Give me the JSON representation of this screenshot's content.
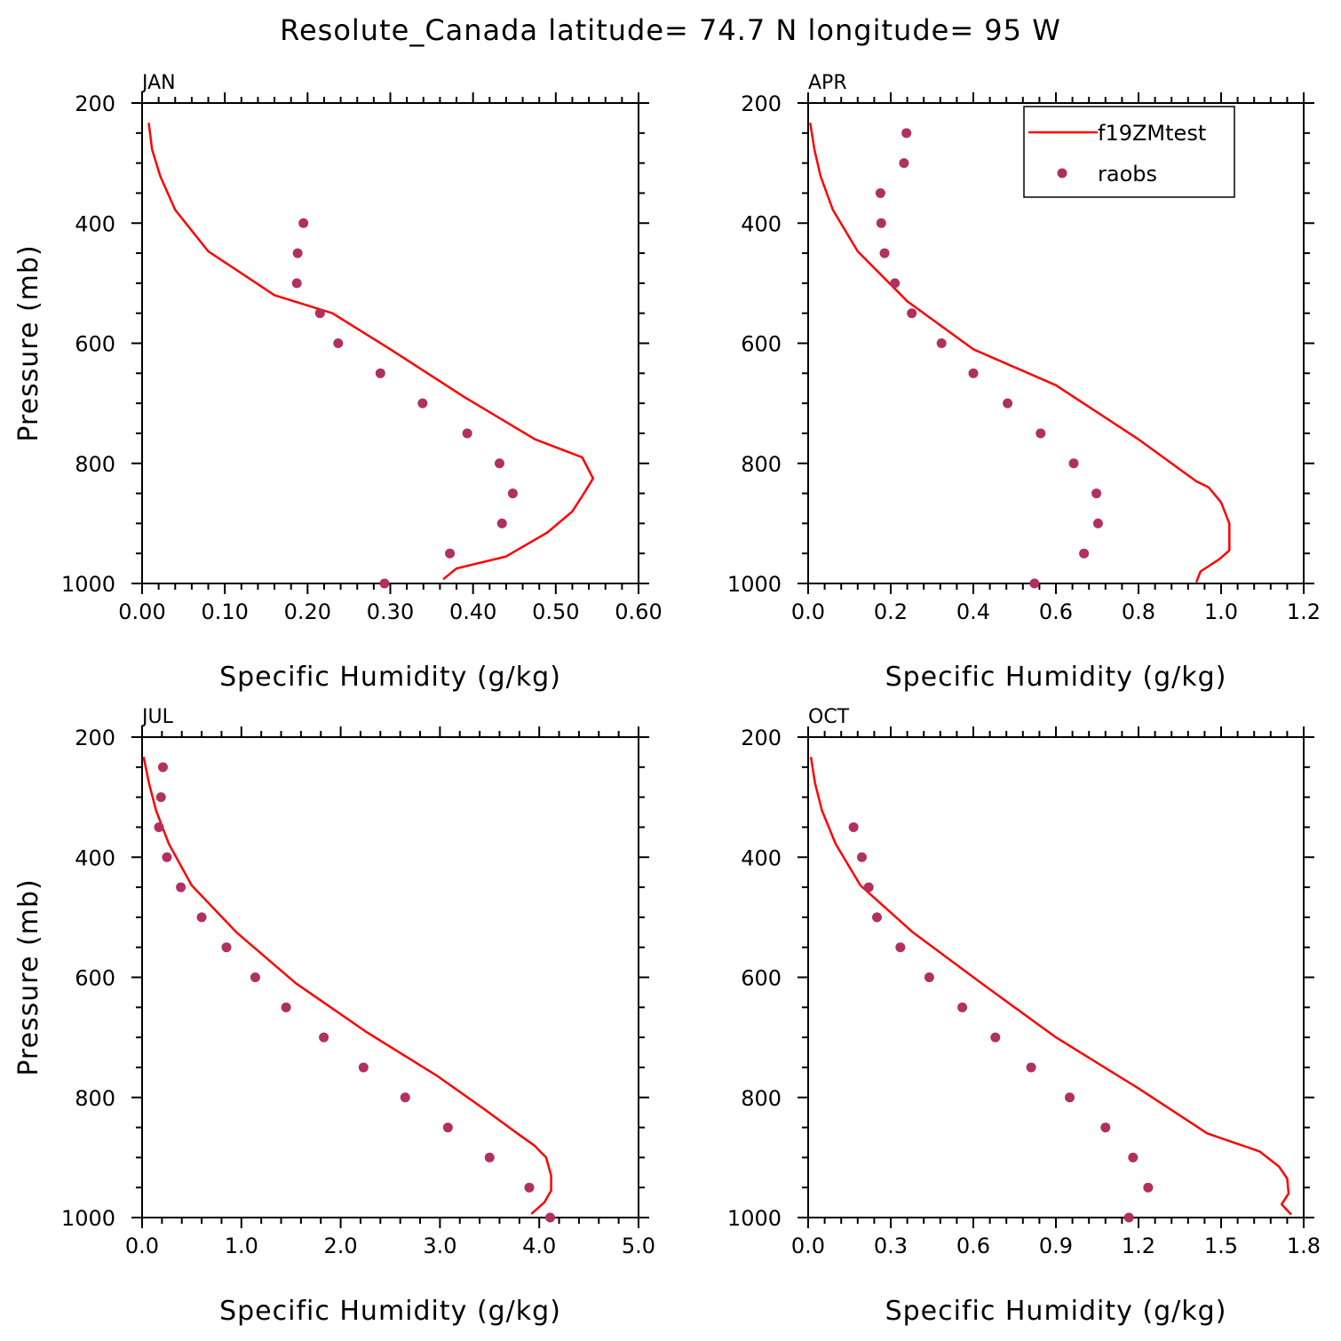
{
  "title": "Resolute_Canada  latitude= 74.7 N longitude= 95 W",
  "colors": {
    "model": "#ff0000",
    "obs": "#b03060",
    "axis": "#000000",
    "background": "#ffffff"
  },
  "legend": {
    "model_label": "f19ZMtest",
    "obs_label": "raobs",
    "placement": "top-right of APR panel"
  },
  "chart_data": [
    {
      "type": "line",
      "panel": "JAN",
      "xlabel": "Specific Humidity (g/kg)",
      "ylabel": "Pressure (mb)",
      "xlim": [
        0.0,
        0.6
      ],
      "ylim": [
        1000,
        200
      ],
      "x_ticks": [
        "0.00",
        "0.10",
        "0.20",
        "0.30",
        "0.40",
        "0.50",
        "0.60"
      ],
      "y_ticks": [
        "200",
        "400",
        "600",
        "800",
        "1000"
      ],
      "series": [
        {
          "name": "f19ZMtest",
          "kind": "line",
          "x": [
            0.364,
            0.38,
            0.44,
            0.49,
            0.52,
            0.535,
            0.545,
            0.532,
            0.475,
            0.39,
            0.3,
            0.23,
            0.16,
            0.08,
            0.04,
            0.022,
            0.012,
            0.008
          ],
          "y": [
            993,
            975,
            955,
            915,
            880,
            848,
            825,
            790,
            760,
            690,
            610,
            550,
            520,
            447,
            378,
            322,
            277,
            233
          ]
        },
        {
          "name": "raobs",
          "kind": "points",
          "x": [
            0.293,
            0.372,
            0.435,
            0.448,
            0.432,
            0.393,
            0.339,
            0.288,
            0.237,
            0.215,
            0.187,
            0.188,
            0.195
          ],
          "y": [
            1000,
            950,
            900,
            850,
            800,
            750,
            700,
            650,
            600,
            550,
            500,
            450,
            400
          ]
        }
      ]
    },
    {
      "type": "line",
      "panel": "APR",
      "xlabel": "Specific Humidity (g/kg)",
      "ylabel": "",
      "xlim": [
        0.0,
        1.2
      ],
      "ylim": [
        1000,
        200
      ],
      "x_ticks": [
        "0.0",
        "0.2",
        "0.4",
        "0.6",
        "0.8",
        "1.0",
        "1.2"
      ],
      "y_ticks": [
        "200",
        "400",
        "600",
        "800",
        "1000"
      ],
      "series": [
        {
          "name": "f19ZMtest",
          "kind": "line",
          "x": [
            0.94,
            0.95,
            0.995,
            1.02,
            1.02,
            1.0,
            0.97,
            0.94,
            0.8,
            0.6,
            0.4,
            0.24,
            0.12,
            0.06,
            0.03,
            0.015,
            0.005
          ],
          "y": [
            998,
            980,
            960,
            945,
            900,
            865,
            840,
            830,
            760,
            670,
            610,
            530,
            447,
            378,
            322,
            277,
            233
          ]
        },
        {
          "name": "raobs",
          "kind": "points",
          "x": [
            0.548,
            0.668,
            0.702,
            0.698,
            0.643,
            0.563,
            0.483,
            0.4,
            0.323,
            0.251,
            0.21,
            0.185,
            0.177,
            0.175,
            0.232,
            0.238
          ],
          "y": [
            1000,
            950,
            900,
            850,
            800,
            750,
            700,
            650,
            600,
            550,
            500,
            450,
            400,
            350,
            300,
            250
          ]
        }
      ]
    },
    {
      "type": "line",
      "panel": "JUL",
      "xlabel": "Specific Humidity (g/kg)",
      "ylabel": "Pressure (mb)",
      "xlim": [
        0.0,
        5.0
      ],
      "ylim": [
        1000,
        200
      ],
      "x_ticks": [
        "0.0",
        "1.0",
        "2.0",
        "3.0",
        "4.0",
        "5.0"
      ],
      "y_ticks": [
        "200",
        "400",
        "600",
        "800",
        "1000"
      ],
      "series": [
        {
          "name": "f19ZMtest",
          "kind": "line",
          "x": [
            3.92,
            4.05,
            4.12,
            4.12,
            4.07,
            3.95,
            3.78,
            3.45,
            2.98,
            2.25,
            1.55,
            0.95,
            0.5,
            0.27,
            0.14,
            0.07,
            0.015
          ],
          "y": [
            994,
            975,
            955,
            930,
            900,
            880,
            860,
            820,
            765,
            690,
            610,
            525,
            447,
            378,
            322,
            277,
            233
          ]
        },
        {
          "name": "raobs",
          "kind": "points",
          "x": [
            4.11,
            3.9,
            3.5,
            3.08,
            2.65,
            2.23,
            1.83,
            1.45,
            1.14,
            0.85,
            0.6,
            0.39,
            0.25,
            0.17,
            0.19,
            0.21
          ],
          "y": [
            1000,
            950,
            900,
            850,
            800,
            750,
            700,
            650,
            600,
            550,
            500,
            450,
            400,
            350,
            300,
            250
          ]
        }
      ]
    },
    {
      "type": "line",
      "panel": "OCT",
      "xlabel": "Specific Humidity (g/kg)",
      "ylabel": "",
      "xlim": [
        0.0,
        1.8
      ],
      "ylim": [
        1000,
        200
      ],
      "x_ticks": [
        "0.0",
        "0.3",
        "0.6",
        "0.9",
        "1.2",
        "1.5",
        "1.8"
      ],
      "y_ticks": [
        "200",
        "400",
        "600",
        "800",
        "1000"
      ],
      "series": [
        {
          "name": "f19ZMtest",
          "kind": "line",
          "x": [
            1.755,
            1.72,
            1.745,
            1.74,
            1.71,
            1.64,
            1.45,
            1.2,
            0.9,
            0.63,
            0.38,
            0.19,
            0.1,
            0.05,
            0.025,
            0.01
          ],
          "y": [
            995,
            978,
            960,
            935,
            915,
            890,
            860,
            785,
            700,
            610,
            525,
            447,
            378,
            322,
            277,
            233
          ]
        },
        {
          "name": "raobs",
          "kind": "points",
          "x": [
            1.165,
            1.235,
            1.18,
            1.08,
            0.95,
            0.81,
            0.68,
            0.56,
            0.44,
            0.335,
            0.25,
            0.22,
            0.195,
            0.165
          ],
          "y": [
            1000,
            950,
            900,
            850,
            800,
            750,
            700,
            650,
            600,
            550,
            500,
            450,
            400,
            350
          ]
        }
      ]
    }
  ]
}
